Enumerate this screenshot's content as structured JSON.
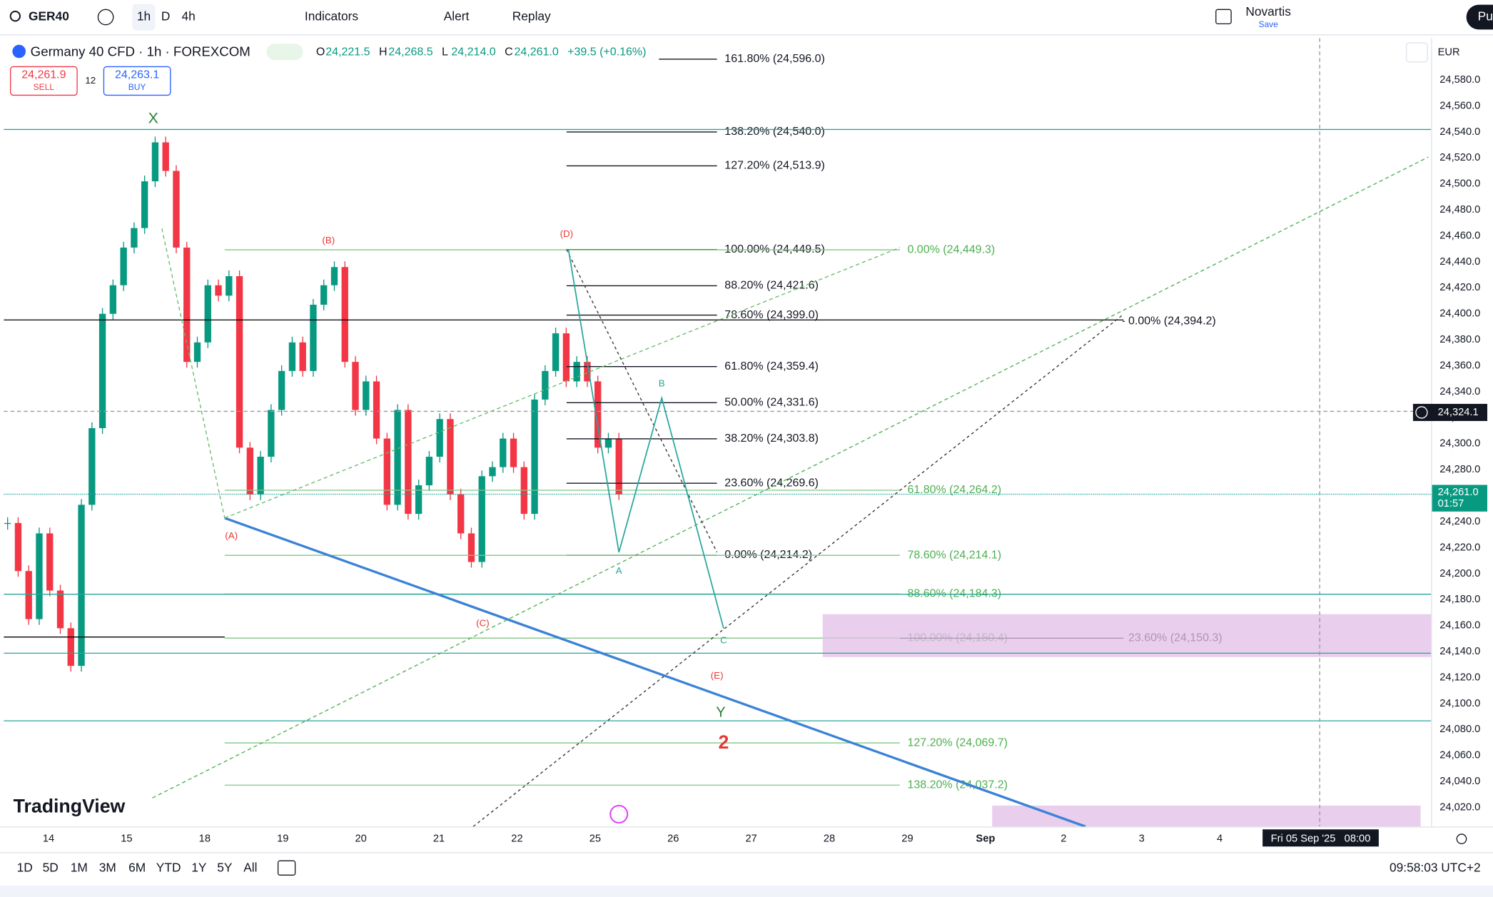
{
  "toolbar": {
    "symbol": "GER40",
    "intervals": [
      "1h",
      "D",
      "4h"
    ],
    "indicators": "Indicators",
    "alert": "Alert",
    "replay": "Replay",
    "layout_name": "Novartis",
    "layout_save": "Save",
    "publish": "Pu"
  },
  "legend": {
    "title": "Germany 40 CFD · 1h · FOREXCOM",
    "ohlc": [
      {
        "key": "O",
        "value": "24,221.5"
      },
      {
        "key": "H",
        "value": "24,268.5"
      },
      {
        "key": "L",
        "value": "24,214.0"
      },
      {
        "key": "C",
        "value": "24,261.0"
      }
    ],
    "change": "+39.5 (+0.16%)",
    "sell_price": "24,261.9",
    "sell": "SELL",
    "spread": "12",
    "buy_price": "24,263.1",
    "buy": "BUY"
  },
  "currency": "EUR",
  "price_axis": {
    "ticks": [
      {
        "value": 24580,
        "label": "24,580.0"
      },
      {
        "value": 24560,
        "label": "24,560.0"
      },
      {
        "value": 24540,
        "label": "24,540.0"
      },
      {
        "value": 24520,
        "label": "24,520.0"
      },
      {
        "value": 24500,
        "label": "24,500.0"
      },
      {
        "value": 24480,
        "label": "24,480.0"
      },
      {
        "value": 24460,
        "label": "24,460.0"
      },
      {
        "value": 24440,
        "label": "24,440.0"
      },
      {
        "value": 24420,
        "label": "24,420.0"
      },
      {
        "value": 24400,
        "label": "24,400.0"
      },
      {
        "value": 24380,
        "label": "24,380.0"
      },
      {
        "value": 24360,
        "label": "24,360.0"
      },
      {
        "value": 24340,
        "label": "24,340.0"
      },
      {
        "value": 24320,
        "label": "24,320.0"
      },
      {
        "value": 24300,
        "label": "24,300.0"
      },
      {
        "value": 24280,
        "label": "24,280.0"
      },
      {
        "value": 24260,
        "label": "24,260.0"
      },
      {
        "value": 24240,
        "label": "24,240.0"
      },
      {
        "value": 24220,
        "label": "24,220.0"
      },
      {
        "value": 24200,
        "label": "24,200.0"
      },
      {
        "value": 24180,
        "label": "24,180.0"
      },
      {
        "value": 24160,
        "label": "24,160.0"
      },
      {
        "value": 24140,
        "label": "24,140.0"
      },
      {
        "value": 24120,
        "label": "24,120.0"
      },
      {
        "value": 24100,
        "label": "24,100.0"
      },
      {
        "value": 24080,
        "label": "24,080.0"
      },
      {
        "value": 24060,
        "label": "24,060.0"
      },
      {
        "value": 24040,
        "label": "24,040.0"
      },
      {
        "value": 24020,
        "label": "24,020.0"
      }
    ]
  },
  "crosshair_price": {
    "value": 24324.1,
    "label": "24,324.1"
  },
  "last_price": {
    "value": 24261,
    "label": "24,261.0",
    "countdown": "01:57"
  },
  "time_axis": {
    "labels": [
      "14",
      "15",
      "18",
      "19",
      "20",
      "21",
      "22",
      "25",
      "26",
      "27",
      "28",
      "29",
      "Sep",
      "2",
      "3",
      "4"
    ],
    "crosshair": "Fri 05 Sep '25   08:00"
  },
  "candles": {
    "closes": [
      24239,
      24202,
      24165,
      24231,
      24187,
      24158,
      24129,
      24253,
      24312,
      24400,
      24422,
      24451,
      24466,
      24502,
      24532,
      24510,
      24451,
      24363,
      24378,
      24422,
      24414,
      24429,
      24297,
      24261,
      24290,
      24326,
      24356,
      24378,
      24356,
      24407,
      24422,
      24436,
      24363,
      24326,
      24348,
      24304,
      24253,
      24326,
      24246,
      24268,
      24290,
      24319,
      24261,
      24231,
      24209,
      24275,
      24282,
      24304,
      24282,
      24246,
      24334,
      24356,
      24385,
      24348,
      24363,
      24348,
      24297,
      24304,
      24261
    ]
  },
  "fib_sets": [
    {
      "levels": [
        {
          "label": "161.80% (24,596.0)",
          "price": 24596.0
        },
        {
          "label": "138.20% (24,540.0)",
          "price": 24540.0
        },
        {
          "label": "127.20% (24,513.9)",
          "price": 24513.9
        },
        {
          "label": "100.00% (24,449.5)",
          "price": 24449.5
        },
        {
          "label": "88.20% (24,421.6)",
          "price": 24421.6
        },
        {
          "label": "78.60% (24,399.0)",
          "price": 24399.0
        },
        {
          "label": "61.80% (24,359.4)",
          "price": 24359.4
        },
        {
          "label": "50.00% (24,331.6)",
          "price": 24331.6
        },
        {
          "label": "38.20% (24,303.8)",
          "price": 24303.8
        },
        {
          "label": "23.60% (24,269.6)",
          "price": 24269.6
        },
        {
          "label": "0.00% (24,214.2)",
          "price": 24214.2
        }
      ]
    },
    {
      "levels": [
        {
          "label": "0.00% (24,449.3)",
          "price": 24449.3
        },
        {
          "label": "61.80% (24,264.2)",
          "price": 24264.2
        },
        {
          "label": "78.60% (24,214.1)",
          "price": 24214.1
        },
        {
          "label": "88.60% (24,184.3)",
          "price": 24184.3
        },
        {
          "label": "100.00% (24,150.4)",
          "price": 24150.4
        },
        {
          "label": "127.20% (24,069.7)",
          "price": 24069.7
        },
        {
          "label": "138.20% (24,037.2)",
          "price": 24037.2
        }
      ]
    },
    {
      "levels": [
        {
          "label": "0.00% (24,394.2)",
          "price": 24394.2
        },
        {
          "label": "23.60% (24,150.3)",
          "price": 24150.3
        }
      ]
    }
  ],
  "wave_labels": [
    "X",
    "(A)",
    "(B)",
    "(C)",
    "(D)",
    "(E)",
    "Y",
    "2",
    "A",
    "B",
    "C"
  ],
  "range_buttons": [
    "1D",
    "5D",
    "1M",
    "3M",
    "6M",
    "YTD",
    "1Y",
    "5Y",
    "All"
  ],
  "clock": "09:58:03 UTC+2",
  "logo": "TradingView"
}
